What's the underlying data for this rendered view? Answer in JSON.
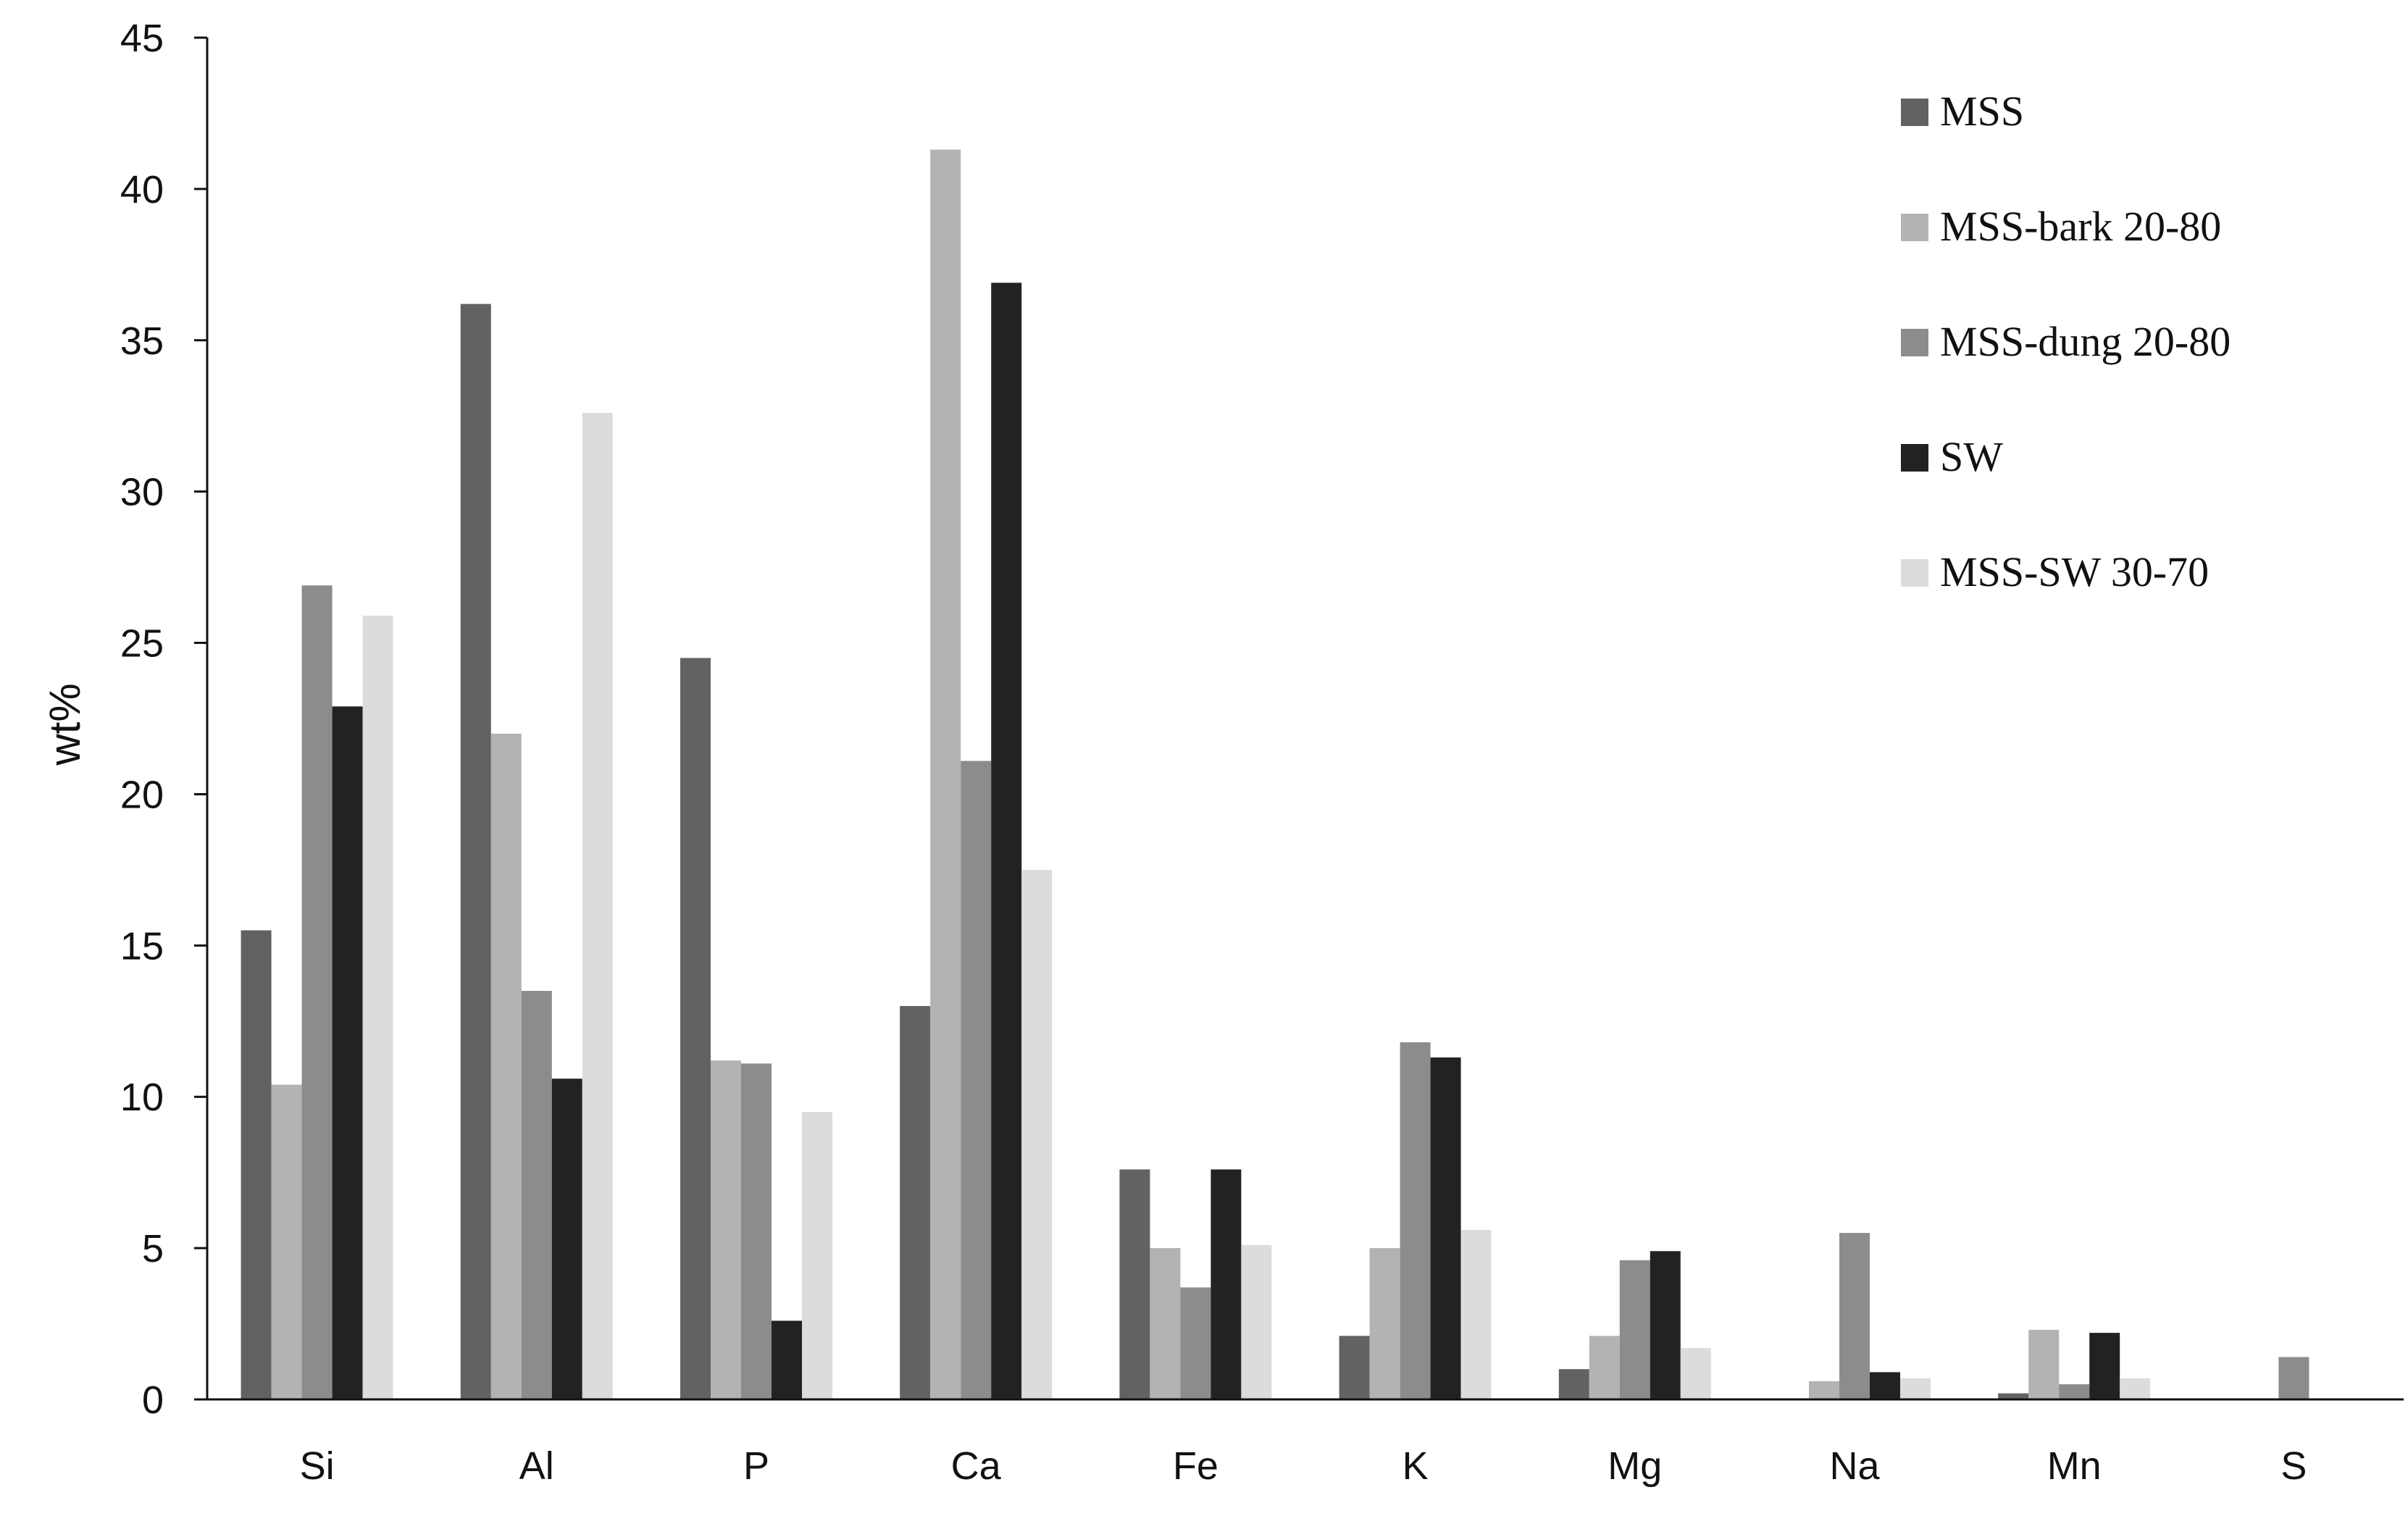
{
  "chart_data": {
    "type": "bar",
    "title": "",
    "xlabel": "",
    "ylabel": "wt%",
    "ylim": [
      0,
      45
    ],
    "yticks": [
      0,
      5,
      10,
      15,
      20,
      25,
      30,
      35,
      40,
      45
    ],
    "categories": [
      "Si",
      "Al",
      "P",
      "Ca",
      "Fe",
      "K",
      "Mg",
      "Na",
      "Mn",
      "S"
    ],
    "series": [
      {
        "name": "MSS",
        "color": "#626262",
        "values": [
          15.5,
          36.2,
          24.5,
          13.0,
          7.6,
          2.1,
          1.0,
          0.0,
          0.2,
          0.0
        ]
      },
      {
        "name": "MSS-bark 20-80",
        "color": "#b3b3b3",
        "values": [
          10.4,
          22.0,
          11.2,
          41.3,
          5.0,
          5.0,
          2.1,
          0.6,
          2.3,
          0.0
        ]
      },
      {
        "name": "MSS-dung 20-80",
        "color": "#8c8c8c",
        "values": [
          26.9,
          13.5,
          11.1,
          21.1,
          3.7,
          11.8,
          4.6,
          5.5,
          0.5,
          1.4
        ]
      },
      {
        "name": "SW",
        "color": "#222222",
        "values": [
          22.9,
          10.6,
          2.6,
          36.9,
          7.6,
          11.3,
          4.9,
          0.9,
          2.2,
          0.0
        ]
      },
      {
        "name": "MSS-SW 30-70",
        "color": "#dcdcdc",
        "values": [
          25.9,
          32.6,
          9.5,
          17.5,
          5.1,
          5.6,
          1.7,
          0.7,
          0.7,
          0.0
        ]
      }
    ],
    "legend_position": "top-right",
    "grid": false
  }
}
